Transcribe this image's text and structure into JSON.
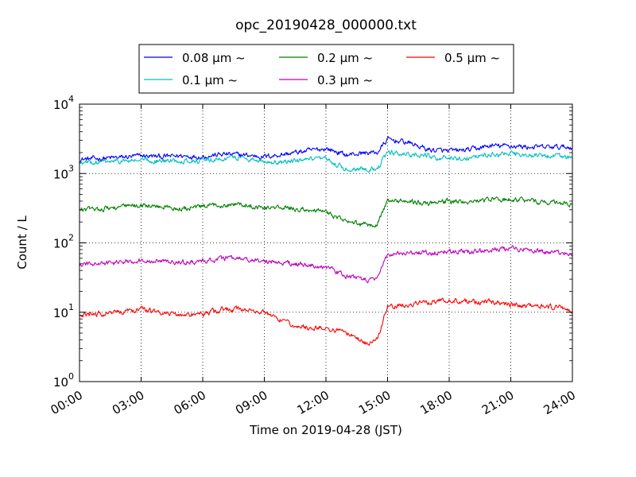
{
  "chart_data": {
    "type": "line",
    "title": "opc_20190428_000000.txt",
    "xlabel": "Time on 2019-04-28 (JST)",
    "ylabel": "Count / L",
    "yscale": "log",
    "xlim": [
      "00:00",
      "24:00"
    ],
    "ylim": [
      1,
      10000
    ],
    "x_ticks": [
      "00:00",
      "03:00",
      "06:00",
      "09:00",
      "12:00",
      "15:00",
      "18:00",
      "21:00",
      "24:00"
    ],
    "y_ticks": [
      {
        "base": "10",
        "exp": "0"
      },
      {
        "base": "10",
        "exp": "1"
      },
      {
        "base": "10",
        "exp": "2"
      },
      {
        "base": "10",
        "exp": "3"
      },
      {
        "base": "10",
        "exp": "4"
      }
    ],
    "grid": true,
    "legend_position": "top-center",
    "legend_suffix": "μm ~",
    "x": [
      "00:00",
      "01:00",
      "02:00",
      "03:00",
      "04:00",
      "05:00",
      "06:00",
      "07:00",
      "08:00",
      "09:00",
      "10:00",
      "11:00",
      "12:00",
      "13:00",
      "14:00",
      "14:30",
      "15:00",
      "16:00",
      "17:00",
      "18:00",
      "19:00",
      "20:00",
      "21:00",
      "22:00",
      "23:00",
      "24:00"
    ],
    "series": [
      {
        "name": "0.08",
        "color": "#0000ff",
        "values": [
          1600,
          1650,
          1700,
          1800,
          1750,
          1800,
          1750,
          1900,
          1850,
          1750,
          1900,
          2100,
          2300,
          1850,
          2000,
          2000,
          3100,
          2800,
          2200,
          2100,
          2200,
          2500,
          2500,
          2400,
          2400,
          2400
        ]
      },
      {
        "name": "0.1",
        "color": "#00bfbf",
        "values": [
          1400,
          1450,
          1500,
          1550,
          1500,
          1550,
          1500,
          1650,
          1700,
          1500,
          1450,
          1550,
          1600,
          1150,
          1200,
          1150,
          2000,
          1900,
          1800,
          1600,
          1700,
          1900,
          1900,
          1800,
          1800,
          1700
        ]
      },
      {
        "name": "0.2",
        "color": "#008000",
        "values": [
          300,
          310,
          330,
          350,
          330,
          310,
          330,
          360,
          360,
          320,
          320,
          300,
          280,
          200,
          180,
          190,
          400,
          400,
          380,
          400,
          390,
          420,
          420,
          400,
          380,
          370
        ]
      },
      {
        "name": "0.3",
        "color": "#bf00bf",
        "values": [
          48,
          50,
          52,
          57,
          54,
          52,
          54,
          60,
          58,
          54,
          52,
          48,
          45,
          33,
          29,
          30,
          70,
          72,
          72,
          75,
          74,
          80,
          85,
          78,
          72,
          70
        ]
      },
      {
        "name": "0.5",
        "color": "#ff0000",
        "values": [
          9,
          9.5,
          10,
          11,
          10,
          9,
          9.5,
          11,
          11,
          10,
          7,
          6,
          6,
          5,
          3.5,
          4,
          12,
          13,
          14,
          15,
          14,
          14,
          13,
          12,
          12,
          11
        ]
      }
    ]
  }
}
